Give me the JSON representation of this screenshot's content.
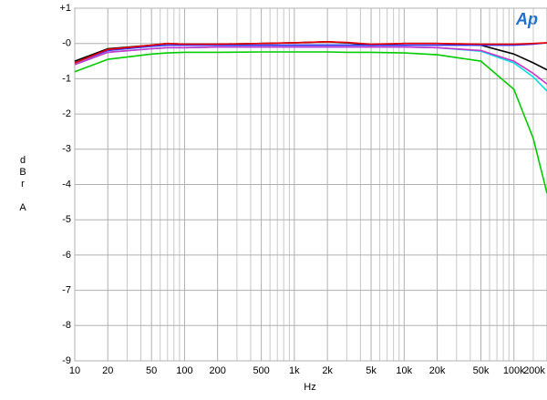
{
  "chart_data": {
    "type": "line",
    "logo": "Ap",
    "xlabel": "Hz",
    "ylabel": [
      "d",
      "B",
      "r",
      "A"
    ],
    "xscale": "log",
    "grid": true,
    "xlim": [
      10,
      200000
    ],
    "ylim": [
      -9,
      1
    ],
    "xticks": [
      10,
      20,
      50,
      100,
      200,
      500,
      {
        "value": 1000,
        "label": "1k"
      },
      {
        "value": 2000,
        "label": "2k"
      },
      {
        "value": 5000,
        "label": "5k"
      },
      {
        "value": 10000,
        "label": "10k"
      },
      {
        "value": 20000,
        "label": "20k"
      },
      {
        "value": 50000,
        "label": "50k"
      },
      {
        "value": 100000,
        "label": "100k"
      },
      {
        "value": 200000,
        "label": "200k"
      }
    ],
    "xminor_ticks": [
      30,
      40,
      60,
      70,
      80,
      90,
      300,
      400,
      600,
      700,
      800,
      900,
      3000,
      4000,
      6000,
      7000,
      8000,
      9000,
      30000,
      40000,
      60000,
      70000,
      80000,
      90000,
      300000,
      400000,
      600000,
      700000,
      800000,
      900000,
      150000
    ],
    "yticks": [
      {
        "value": 1,
        "label": "+1"
      },
      {
        "value": 0,
        "label": "-0"
      },
      -1,
      -2,
      -3,
      -4,
      -5,
      -6,
      -7,
      -8,
      -9
    ],
    "x": [
      10,
      20,
      50,
      70,
      100,
      200,
      500,
      1000,
      2000,
      3000,
      5000,
      10000,
      20000,
      50000,
      100000,
      150000,
      200000
    ],
    "series": [
      {
        "color": "#00cc00",
        "values": [
          -0.8,
          -0.45,
          -0.3,
          -0.27,
          -0.25,
          -0.25,
          -0.24,
          -0.24,
          -0.24,
          -0.25,
          -0.25,
          -0.27,
          -0.32,
          -0.5,
          -1.3,
          -2.7,
          -4.25
        ]
      },
      {
        "color": "#00e0e0",
        "values": [
          -0.6,
          -0.25,
          -0.15,
          -0.12,
          -0.12,
          -0.1,
          -0.1,
          -0.1,
          -0.1,
          -0.1,
          -0.1,
          -0.1,
          -0.12,
          -0.22,
          -0.55,
          -0.95,
          -1.35
        ]
      },
      {
        "color": "#cc33cc",
        "values": [
          -0.6,
          -0.25,
          -0.15,
          -0.12,
          -0.12,
          -0.1,
          -0.1,
          -0.1,
          -0.1,
          -0.1,
          -0.1,
          -0.1,
          -0.12,
          -0.2,
          -0.5,
          -0.85,
          -1.15
        ]
      },
      {
        "color": "#000000",
        "values": [
          -0.5,
          -0.15,
          -0.05,
          0,
          -0.02,
          -0.02,
          0,
          0.02,
          0.05,
          0.02,
          -0.05,
          0,
          0,
          -0.05,
          -0.3,
          -0.55,
          -0.75
        ]
      },
      {
        "color": "#3333ff",
        "values": [
          -0.55,
          -0.2,
          -0.08,
          -0.05,
          -0.05,
          -0.05,
          -0.05,
          -0.05,
          -0.05,
          -0.05,
          -0.05,
          -0.05,
          -0.05,
          -0.05,
          -0.05,
          -0.02,
          0.02
        ]
      },
      {
        "color": "#ee0000",
        "values": [
          -0.55,
          -0.17,
          -0.05,
          0,
          -0.02,
          -0.02,
          0,
          0.02,
          0.05,
          0.03,
          -0.02,
          0,
          0,
          -0.02,
          -0.02,
          0,
          0.02
        ]
      }
    ]
  }
}
